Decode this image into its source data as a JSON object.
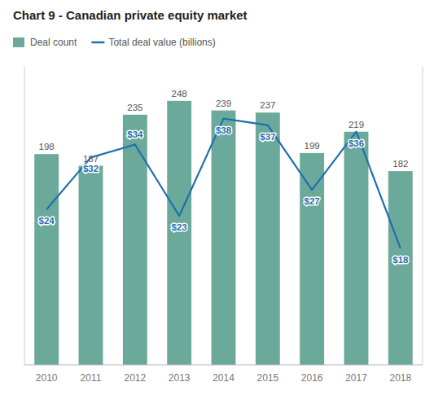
{
  "chart_data": {
    "type": "bar",
    "title": "Chart 9 - Canadian private equity market",
    "categories": [
      "2010",
      "2011",
      "2012",
      "2013",
      "2014",
      "2015",
      "2016",
      "2017",
      "2018"
    ],
    "series": [
      {
        "name": "Deal count",
        "type": "bar",
        "color": "#6baa9a",
        "values": [
          198,
          187,
          235,
          248,
          239,
          237,
          199,
          219,
          182
        ]
      },
      {
        "name": "Total deal value (billions)",
        "type": "line",
        "color": "#1f6fad",
        "axis": "y2",
        "values": [
          24,
          32,
          34,
          23,
          38,
          37,
          27,
          36,
          18
        ],
        "value_labels": [
          "$24",
          "$32",
          "$34",
          "$23",
          "$38",
          "$37",
          "$27",
          "$36",
          "$18"
        ]
      }
    ],
    "ylim": [
      0,
      280
    ],
    "y2lim": [
      0,
      46
    ],
    "grid": false,
    "legend": "top-left",
    "data_labels": true,
    "tick_labels": "x"
  }
}
